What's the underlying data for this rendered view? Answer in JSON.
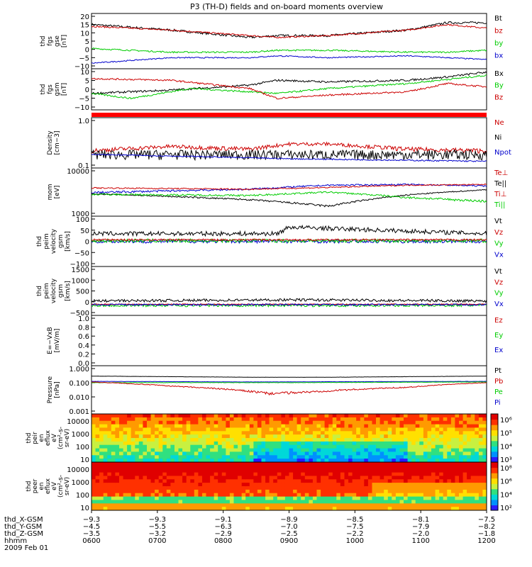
{
  "chart_data": {
    "title": "P3 (TH-D) fields and on-board moments overview",
    "type": "line",
    "panels": [
      {
        "ylabel": [
          "thd",
          "fgs",
          "gse",
          "[nT]"
        ],
        "yticks": [
          "20",
          "15",
          "10",
          "5",
          "0",
          "−5",
          "−10"
        ],
        "ylim": [
          -10,
          20
        ],
        "log": false,
        "legend": [
          {
            "text": "Bt",
            "color": "#000000"
          },
          {
            "text": "bz",
            "color": "#cc0000"
          },
          {
            "text": "by",
            "color": "#00cc00"
          },
          {
            "text": "bx",
            "color": "#0000cc"
          }
        ],
        "series": [
          {
            "color": "#000000",
            "noise": 0.6,
            "points": [
              [
                0,
                14
              ],
              [
                0.2,
                11
              ],
              [
                0.4,
                7
              ],
              [
                0.47,
                8
              ],
              [
                0.6,
                8
              ],
              [
                0.8,
                11
              ],
              [
                0.9,
                15
              ],
              [
                1,
                15
              ]
            ]
          },
          {
            "color": "#cc0000",
            "noise": 0.4,
            "points": [
              [
                0,
                13
              ],
              [
                0.2,
                11
              ],
              [
                0.4,
                8
              ],
              [
                0.47,
                7
              ],
              [
                0.6,
                8
              ],
              [
                0.8,
                11
              ],
              [
                0.9,
                14
              ],
              [
                1,
                12
              ]
            ]
          },
          {
            "color": "#00cc00",
            "noise": 0.4,
            "points": [
              [
                0,
                1
              ],
              [
                0.2,
                -1
              ],
              [
                0.4,
                -1
              ],
              [
                0.47,
                0
              ],
              [
                0.6,
                0
              ],
              [
                0.8,
                -1
              ],
              [
                0.9,
                -1
              ],
              [
                1,
                0
              ]
            ]
          },
          {
            "color": "#0000cc",
            "noise": 0.3,
            "points": [
              [
                0,
                -7
              ],
              [
                0.2,
                -4
              ],
              [
                0.4,
                -4
              ],
              [
                0.47,
                -3
              ],
              [
                0.6,
                -4
              ],
              [
                0.8,
                -3
              ],
              [
                0.9,
                -4
              ],
              [
                1,
                -5
              ]
            ]
          }
        ]
      },
      {
        "ylabel": [
          "thd",
          "fgs",
          "gsm",
          "[nT]"
        ],
        "yticks": [
          "10",
          "5",
          "0",
          "−5",
          "−10"
        ],
        "ylim": [
          -13,
          12
        ],
        "log": false,
        "legend": [
          {
            "text": "Bx",
            "color": "#000000"
          },
          {
            "text": "By",
            "color": "#00cc00"
          },
          {
            "text": "Bz",
            "color": "#cc0000"
          }
        ],
        "series": [
          {
            "color": "#000000",
            "noise": 0.6,
            "points": [
              [
                0,
                -3
              ],
              [
                0.2,
                -1
              ],
              [
                0.4,
                2
              ],
              [
                0.47,
                5
              ],
              [
                0.6,
                4
              ],
              [
                0.8,
                5
              ],
              [
                0.9,
                7
              ],
              [
                1,
                10
              ]
            ]
          },
          {
            "color": "#00cc00",
            "noise": 0.5,
            "points": [
              [
                0,
                -3
              ],
              [
                0.1,
                -6
              ],
              [
                0.25,
                0
              ],
              [
                0.4,
                -2
              ],
              [
                0.47,
                -3
              ],
              [
                0.6,
                0
              ],
              [
                0.8,
                3
              ],
              [
                1,
                8
              ]
            ]
          },
          {
            "color": "#cc0000",
            "noise": 0.5,
            "points": [
              [
                0,
                6
              ],
              [
                0.2,
                5
              ],
              [
                0.4,
                0
              ],
              [
                0.47,
                -6
              ],
              [
                0.6,
                -4
              ],
              [
                0.8,
                -2
              ],
              [
                0.9,
                3
              ],
              [
                1,
                1
              ]
            ]
          }
        ]
      },
      {
        "ylabel": [
          "Density",
          "[cm−3]"
        ],
        "yticks": [
          "1.0",
          "0.1"
        ],
        "ylim": [
          0.1,
          1.3
        ],
        "log": true,
        "legend": [
          {
            "text": "Ne",
            "color": "#cc0000"
          },
          {
            "text": "Ni",
            "color": "#000000"
          },
          {
            "text": "Npot",
            "color": "#0000cc"
          }
        ],
        "series": [
          {
            "color": "#cc0000",
            "noise": 0.03,
            "points": [
              [
                0,
                0.24
              ],
              [
                0.2,
                0.3
              ],
              [
                0.4,
                0.26
              ],
              [
                0.5,
                0.34
              ],
              [
                0.6,
                0.34
              ],
              [
                0.8,
                0.26
              ],
              [
                1,
                0.24
              ]
            ]
          },
          {
            "color": "#000000",
            "noise": 0.05,
            "points": [
              [
                0,
                0.2
              ],
              [
                0.3,
                0.2
              ],
              [
                0.6,
                0.2
              ],
              [
                1,
                0.2
              ]
            ]
          },
          {
            "color": "#0000cc",
            "noise": 0.005,
            "points": [
              [
                0,
                0.2
              ],
              [
                0.5,
                0.16
              ],
              [
                1,
                0.14
              ]
            ]
          }
        ]
      },
      {
        "ylabel": [
          "mom",
          "[eV]"
        ],
        "yticks": [
          "10000",
          "1000"
        ],
        "ylim": [
          1000,
          13000
        ],
        "log": true,
        "legend": [
          {
            "text": "Te⊥",
            "color": "#cc0000"
          },
          {
            "text": "Te||",
            "color": "#000000"
          },
          {
            "text": "Ti⊥",
            "color": "#cc0000"
          },
          {
            "text": "Ti||",
            "color": "#00cc00"
          }
        ],
        "series": [
          {
            "color": "#0000cc",
            "noise": 200,
            "points": [
              [
                0,
                3500
              ],
              [
                0.4,
                4200
              ],
              [
                0.6,
                5200
              ],
              [
                0.8,
                5400
              ],
              [
                1,
                5000
              ]
            ]
          },
          {
            "color": "#cc0000",
            "noise": 150,
            "points": [
              [
                0,
                4500
              ],
              [
                0.4,
                4200
              ],
              [
                0.6,
                4600
              ],
              [
                0.8,
                5200
              ],
              [
                1,
                5400
              ]
            ]
          },
          {
            "color": "#000000",
            "noise": 100,
            "points": [
              [
                0,
                3300
              ],
              [
                0.4,
                2400
              ],
              [
                0.6,
                1700
              ],
              [
                0.7,
                2400
              ],
              [
                0.8,
                3100
              ],
              [
                1,
                4100
              ]
            ]
          },
          {
            "color": "#00cc00",
            "noise": 150,
            "points": [
              [
                0,
                3200
              ],
              [
                0.4,
                3000
              ],
              [
                0.6,
                3600
              ],
              [
                0.8,
                2700
              ],
              [
                1,
                2200
              ]
            ]
          }
        ]
      },
      {
        "ylabel": [
          "thd",
          "peim",
          "velocity",
          "gsm",
          "[km/s]"
        ],
        "yticks": [
          "100",
          "50",
          "0",
          "−50",
          "−100"
        ],
        "ylim": [
          -120,
          110
        ],
        "log": false,
        "legend": [
          {
            "text": "Vt",
            "color": "#000000"
          },
          {
            "text": "Vz",
            "color": "#cc0000"
          },
          {
            "text": "Vy",
            "color": "#00cc00"
          },
          {
            "text": "Vx",
            "color": "#0000cc"
          }
        ],
        "series": [
          {
            "color": "#000000",
            "noise": 10,
            "points": [
              [
                0,
                30
              ],
              [
                0.47,
                30
              ],
              [
                0.5,
                60
              ],
              [
                1,
                30
              ]
            ]
          },
          {
            "color": "#0000cc",
            "noise": 8,
            "points": [
              [
                0,
                -5
              ],
              [
                1,
                -5
              ]
            ]
          },
          {
            "color": "#00cc00",
            "noise": 8,
            "points": [
              [
                0,
                -2
              ],
              [
                1,
                -2
              ]
            ]
          },
          {
            "color": "#cc0000",
            "noise": 4,
            "points": [
              [
                0,
                2
              ],
              [
                1,
                2
              ]
            ]
          }
        ]
      },
      {
        "ylabel": [
          "thd",
          "peim",
          "velocity",
          "gsm",
          "[km/s]"
        ],
        "yticks": [
          "1500",
          "1000",
          "500",
          "0",
          "−500"
        ],
        "ylim": [
          -500,
          1700
        ],
        "log": false,
        "legend": [
          {
            "text": "Vt",
            "color": "#000000"
          },
          {
            "text": "Vz",
            "color": "#cc0000"
          },
          {
            "text": "Vy",
            "color": "#00cc00"
          },
          {
            "text": "Vx",
            "color": "#0000cc"
          }
        ],
        "series": [
          {
            "color": "#000000",
            "noise": 60,
            "points": [
              [
                0,
                150
              ],
              [
                0.5,
                200
              ],
              [
                1,
                150
              ]
            ]
          },
          {
            "color": "#00cc00",
            "noise": 60,
            "points": [
              [
                0,
                -50
              ],
              [
                1,
                -50
              ]
            ]
          },
          {
            "color": "#cc0000",
            "noise": 20,
            "points": [
              [
                0,
                0
              ],
              [
                1,
                0
              ]
            ]
          },
          {
            "color": "#0000cc",
            "noise": 40,
            "points": [
              [
                0,
                -20
              ],
              [
                1,
                -20
              ]
            ]
          }
        ]
      },
      {
        "ylabel": [
          "E=−VxB",
          "[mV/m]"
        ],
        "yticks": [
          "1.0",
          "0.8",
          "0.6",
          "0.4",
          "0.2",
          "0.0"
        ],
        "ylim": [
          0,
          1
        ],
        "log": false,
        "legend": [
          {
            "text": "Ez",
            "color": "#cc0000"
          },
          {
            "text": "Ey",
            "color": "#00cc00"
          },
          {
            "text": "Ex",
            "color": "#0000cc"
          }
        ],
        "series": []
      },
      {
        "ylabel": [
          "Pressure",
          "[nPa]"
        ],
        "yticks": [
          "1.000",
          "0.100",
          "0.010",
          "0.001"
        ],
        "ylim": [
          0.001,
          1.2
        ],
        "log": true,
        "legend": [
          {
            "text": "Pt",
            "color": "#000000"
          },
          {
            "text": "Pb",
            "color": "#cc0000"
          },
          {
            "text": "Pe",
            "color": "#00cc00"
          },
          {
            "text": "Pi",
            "color": "#0000cc"
          }
        ],
        "series": [
          {
            "color": "#000000",
            "noise": 0.003,
            "points": [
              [
                0,
                0.26
              ],
              [
                0.4,
                0.22
              ],
              [
                0.6,
                0.22
              ],
              [
                1,
                0.26
              ]
            ]
          },
          {
            "color": "#0000cc",
            "noise": 0.002,
            "points": [
              [
                0,
                0.12
              ],
              [
                0.4,
                0.11
              ],
              [
                1,
                0.12
              ]
            ]
          },
          {
            "color": "#00cc00",
            "noise": 0.003,
            "points": [
              [
                0,
                0.1
              ],
              [
                0.5,
                0.1
              ],
              [
                1,
                0.11
              ]
            ]
          },
          {
            "color": "#cc0000",
            "noise": 0.004,
            "points": [
              [
                0,
                0.11
              ],
              [
                0.2,
                0.06
              ],
              [
                0.45,
                0.02
              ],
              [
                0.55,
                0.025
              ],
              [
                0.8,
                0.05
              ],
              [
                1,
                0.1
              ]
            ]
          }
        ]
      }
    ],
    "spectrograms": [
      {
        "ylabel": [
          "thd",
          "peir",
          "en",
          "eflux",
          "eV",
          "(cm²-s-",
          "sr-eV)"
        ],
        "yticks": [
          "10000",
          "1000",
          "100",
          "10"
        ],
        "colorbar_ticks": [
          "10⁶",
          "10⁵",
          "10⁴",
          "10³"
        ]
      },
      {
        "ylabel": [
          "thd",
          "peer",
          "en",
          "eflux",
          "eV",
          "(cm²-s-",
          "sr-eV)"
        ],
        "yticks": [
          "10000",
          "1000",
          "100",
          "10"
        ],
        "colorbar_ticks": [
          "10⁸",
          "10⁶",
          "10⁴",
          "10²"
        ]
      }
    ],
    "x_axis": {
      "rows": [
        {
          "label": "thd_X-GSM",
          "values": [
            "−9.3",
            "−9.3",
            "−9.1",
            "−8.9",
            "−8.5",
            "−8.1",
            "−7.5"
          ]
        },
        {
          "label": "thd_Y-GSM",
          "values": [
            "−4.5",
            "−5.5",
            "−6.3",
            "−7.0",
            "−7.5",
            "−7.9",
            "−8.2"
          ]
        },
        {
          "label": "thd_Z-GSM",
          "values": [
            "−3.5",
            "−3.2",
            "−2.9",
            "−2.5",
            "−2.2",
            "−2.0",
            "−1.8"
          ]
        },
        {
          "label": "hhmm",
          "values": [
            "0600",
            "0700",
            "0800",
            "0900",
            "1000",
            "1100",
            "1200"
          ]
        }
      ],
      "date": "2009 Feb 01"
    }
  }
}
